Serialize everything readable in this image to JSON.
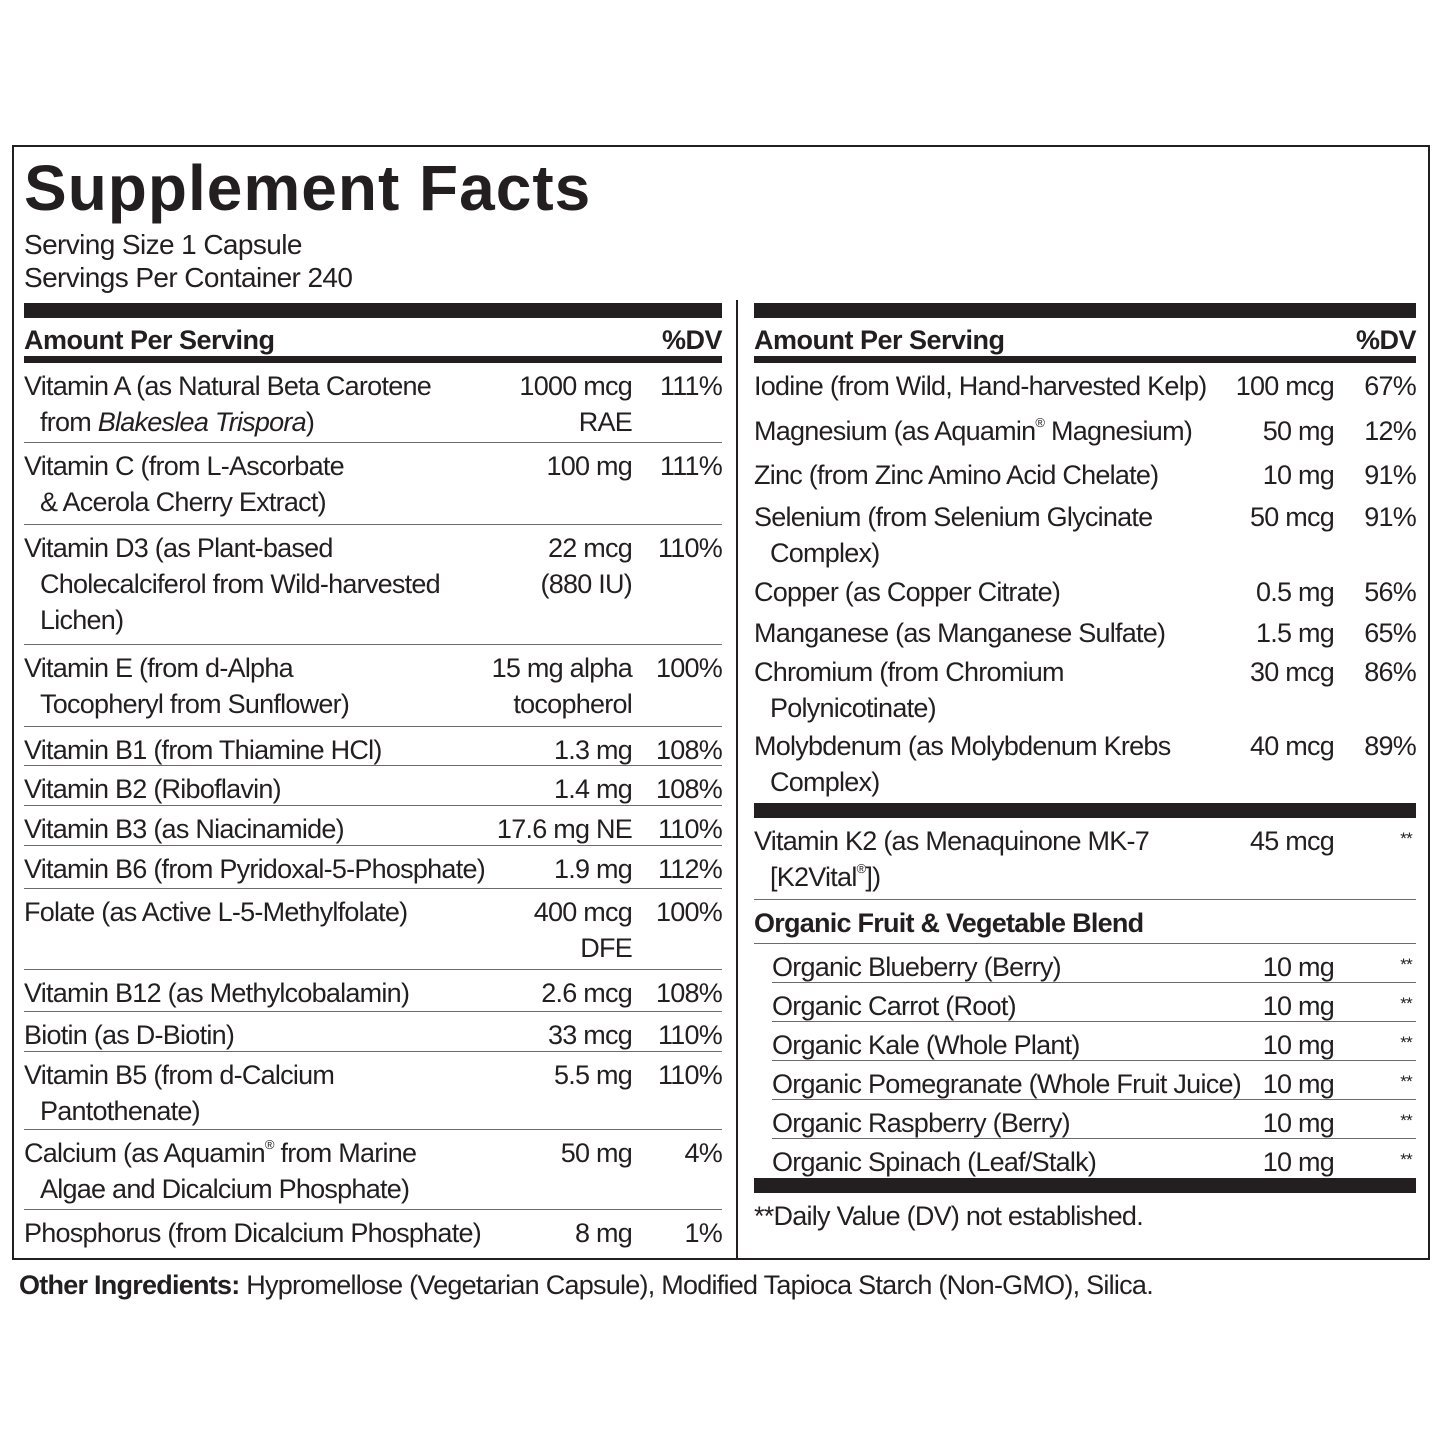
{
  "title": "Supplement Facts",
  "serving_size": "Serving Size 1 Capsule",
  "servings_per_container": "Servings Per Container 240",
  "header": {
    "amount": "Amount Per Serving",
    "dv": "%DV"
  },
  "left_rows": [
    {
      "name": [
        [
          "Vitamin A (as Natural Beta Carotene"
        ],
        [
          "from ",
          {
            "i": "Blakeslea Trispora"
          },
          ")"
        ]
      ],
      "amount": [
        "1000 mcg",
        "RAE"
      ],
      "dv": "111%"
    },
    {
      "name": [
        [
          "Vitamin C (from L-Ascorbate"
        ],
        [
          "& Acerola Cherry Extract)"
        ]
      ],
      "amount": [
        "100 mg"
      ],
      "dv": "111%"
    },
    {
      "name": [
        [
          "Vitamin D3 (as Plant-based"
        ],
        [
          "Cholecalciferol from Wild-harvested"
        ],
        [
          "Lichen)"
        ]
      ],
      "amount": [
        "22 mcg",
        "(880 IU)"
      ],
      "dv": "110%"
    },
    {
      "name": [
        [
          "Vitamin E (from d-Alpha"
        ],
        [
          "Tocopheryl from Sunflower)"
        ]
      ],
      "amount": [
        "15 mg alpha",
        "tocopherol"
      ],
      "dv": "100%"
    },
    {
      "name": [
        [
          "Vitamin B1 (from Thiamine HCl)"
        ]
      ],
      "amount": [
        "1.3 mg"
      ],
      "dv": "108%"
    },
    {
      "name": [
        [
          "Vitamin B2 (Riboflavin)"
        ]
      ],
      "amount": [
        "1.4 mg"
      ],
      "dv": "108%"
    },
    {
      "name": [
        [
          "Vitamin B3 (as Niacinamide)"
        ]
      ],
      "amount": [
        "17.6 mg NE"
      ],
      "dv": "110%"
    },
    {
      "name": [
        [
          "Vitamin B6 (from Pyridoxal-5-Phosphate)"
        ]
      ],
      "amount": [
        "1.9 mg"
      ],
      "dv": "112%"
    },
    {
      "name": [
        [
          "Folate (as Active L-5-Methylfolate)"
        ]
      ],
      "amount": [
        "400 mcg",
        "DFE"
      ],
      "dv": "100%"
    },
    {
      "name": [
        [
          "Vitamin B12 (as Methylcobalamin)"
        ]
      ],
      "amount": [
        "2.6 mcg"
      ],
      "dv": "108%"
    },
    {
      "name": [
        [
          "Biotin (as D-Biotin)"
        ]
      ],
      "amount": [
        "33 mcg"
      ],
      "dv": "110%"
    },
    {
      "name": [
        [
          "Vitamin B5 (from d-Calcium"
        ],
        [
          "Pantothenate)"
        ]
      ],
      "amount": [
        "5.5 mg"
      ],
      "dv": "110%"
    },
    {
      "name": [
        [
          "Calcium (as Aquamin",
          {
            "s": "®"
          },
          " from Marine"
        ],
        [
          "Algae and Dicalcium Phosphate)"
        ]
      ],
      "amount": [
        "50 mg"
      ],
      "dv": "4%"
    },
    {
      "name": [
        [
          "Phosphorus (from Dicalcium Phosphate)"
        ]
      ],
      "amount": [
        "8 mg"
      ],
      "dv": "1%"
    }
  ],
  "right_rows": [
    {
      "name": [
        [
          "Iodine (from Wild, Hand-harvested Kelp)"
        ]
      ],
      "amount": [
        "100 mcg"
      ],
      "dv": "67%"
    },
    {
      "name": [
        [
          "Magnesium (as Aquamin",
          {
            "s": "®"
          },
          " Magnesium)"
        ]
      ],
      "amount": [
        "50 mg"
      ],
      "dv": "12%"
    },
    {
      "name": [
        [
          "Zinc (from Zinc Amino Acid Chelate)"
        ]
      ],
      "amount": [
        "10 mg"
      ],
      "dv": "91%"
    },
    {
      "name": [
        [
          "Selenium (from Selenium Glycinate"
        ],
        [
          "Complex)"
        ]
      ],
      "amount": [
        "50 mcg"
      ],
      "dv": "91%"
    },
    {
      "name": [
        [
          "Copper (as Copper Citrate)"
        ]
      ],
      "amount": [
        "0.5 mg"
      ],
      "dv": "56%"
    },
    {
      "name": [
        [
          "Manganese (as Manganese Sulfate)"
        ]
      ],
      "amount": [
        "1.5 mg"
      ],
      "dv": "65%"
    },
    {
      "name": [
        [
          "Chromium (from Chromium"
        ],
        [
          "Polynicotinate)"
        ]
      ],
      "amount": [
        "30 mcg"
      ],
      "dv": "86%"
    },
    {
      "name": [
        [
          "Molybdenum (as Molybdenum Krebs"
        ],
        [
          "Complex)"
        ]
      ],
      "amount": [
        "40 mcg"
      ],
      "dv": "89%"
    }
  ],
  "k2_row": {
    "name": [
      [
        "Vitamin K2 (as Menaquinone MK-7"
      ],
      [
        "[K2Vital",
        {
          "s": "®"
        },
        "])"
      ]
    ],
    "amount": [
      "45 mcg"
    ],
    "dv": "**"
  },
  "blend": {
    "title": "Organic Fruit & Vegetable Blend",
    "items": [
      {
        "name": [
          [
            "Organic Blueberry (Berry)"
          ]
        ],
        "amount": [
          "10 mg"
        ],
        "dv": "**"
      },
      {
        "name": [
          [
            "Organic Carrot (Root)"
          ]
        ],
        "amount": [
          "10 mg"
        ],
        "dv": "**"
      },
      {
        "name": [
          [
            "Organic Kale (Whole Plant)"
          ]
        ],
        "amount": [
          "10 mg"
        ],
        "dv": "**"
      },
      {
        "name": [
          [
            "Organic Pomegranate (Whole Fruit Juice)"
          ]
        ],
        "amount": [
          "10 mg"
        ],
        "dv": "**"
      },
      {
        "name": [
          [
            "Organic Raspberry (Berry)"
          ]
        ],
        "amount": [
          "10 mg"
        ],
        "dv": "**"
      },
      {
        "name": [
          [
            "Organic  Spinach (Leaf/Stalk)"
          ]
        ],
        "amount": [
          "10 mg"
        ],
        "dv": "**"
      }
    ]
  },
  "footnote": "**Daily Value (DV) not established.",
  "other_ingredients": {
    "label": "Other Ingredients:",
    "text": " Hypromellose (Vegetarian Capsule), Modified Tapioca Starch (Non-GMO), Silica."
  }
}
